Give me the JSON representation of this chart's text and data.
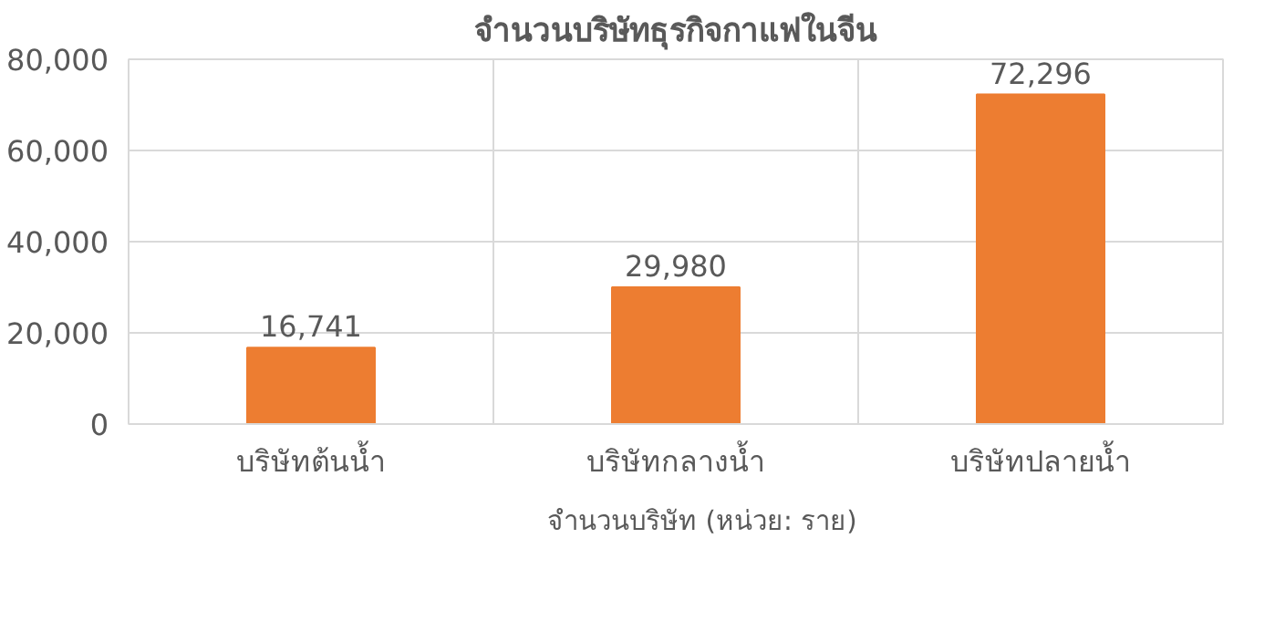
{
  "chart_data": {
    "type": "bar",
    "title": "จำนวนบริษัทธุรกิจกาแฟในจีน",
    "categories": [
      "บริษัทต้นน้ำ",
      "บริษัทกลางน้ำ",
      "บริษัทปลายน้ำ"
    ],
    "series": [
      {
        "name": "จำนวนบริษัท (หน่วย: ราย)",
        "color": "#ed7d31",
        "values": [
          16741,
          29980,
          72296
        ],
        "value_labels": [
          "16,741",
          "29,980",
          "72,296"
        ]
      }
    ],
    "ylim": [
      0,
      80000
    ],
    "yticks": [
      {
        "value": 0,
        "label": "0"
      },
      {
        "value": 20000,
        "label": "20,000"
      },
      {
        "value": 40000,
        "label": "40,000"
      },
      {
        "value": 60000,
        "label": "60,000"
      },
      {
        "value": 80000,
        "label": "80,000"
      }
    ],
    "grid": true,
    "legend": "bottom"
  }
}
